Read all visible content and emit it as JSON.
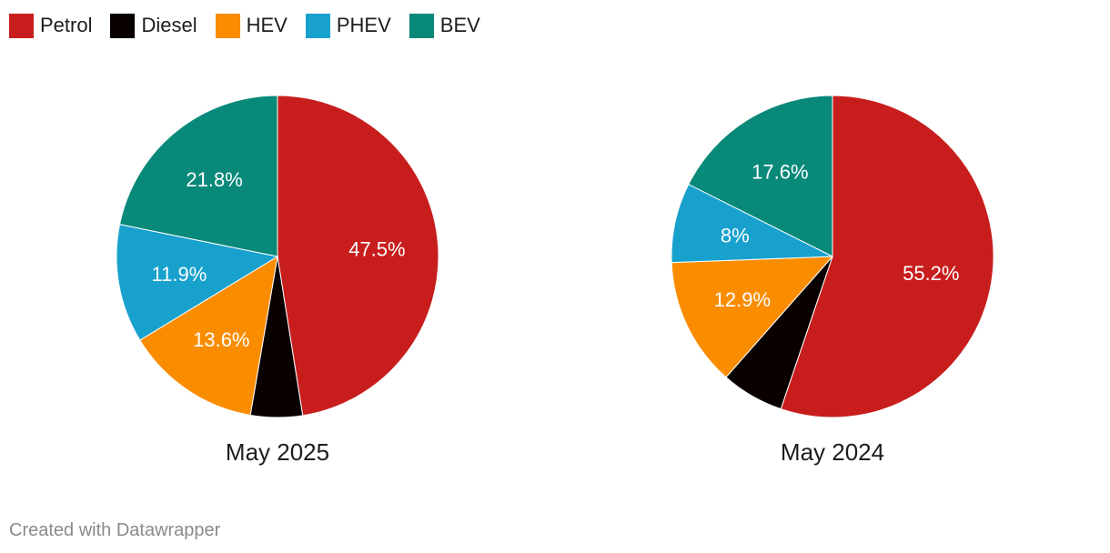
{
  "legend": [
    {
      "label": "Petrol",
      "color": "#c71e1d"
    },
    {
      "label": "Diesel",
      "color": "#090000"
    },
    {
      "label": "HEV",
      "color": "#fa8c00"
    },
    {
      "label": "PHEV",
      "color": "#18a1cd"
    },
    {
      "label": "BEV",
      "color": "#09897a"
    }
  ],
  "footer": "Created with Datawrapper",
  "chart_data": [
    {
      "type": "pie",
      "title": "May 2025",
      "categories": [
        "Petrol",
        "Diesel",
        "HEV",
        "PHEV",
        "BEV"
      ],
      "values": [
        47.5,
        5.2,
        13.6,
        11.9,
        21.8
      ],
      "labels": [
        "47.5%",
        "",
        "13.6%",
        "11.9%",
        "21.8%"
      ]
    },
    {
      "type": "pie",
      "title": "May 2024",
      "categories": [
        "Petrol",
        "Diesel",
        "HEV",
        "PHEV",
        "BEV"
      ],
      "values": [
        55.2,
        6.3,
        12.9,
        8,
        17.6
      ],
      "labels": [
        "55.2%",
        "",
        "12.9%",
        "8%",
        "17.6%"
      ]
    }
  ]
}
